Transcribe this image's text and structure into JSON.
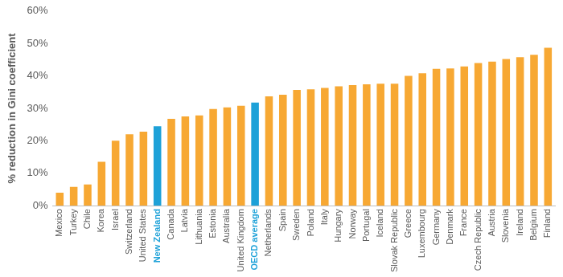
{
  "chart_data": {
    "type": "bar",
    "y_label": "% reduction in Gini coefficient",
    "categories": [
      "Mexico",
      "Turkey",
      "Chile",
      "Korea",
      "Israel",
      "Switzerland",
      "United States",
      "New Zealand",
      "Canada",
      "Latvia",
      "Lithuania",
      "Estonia",
      "Australia",
      "United Kingdom",
      "OECD average",
      "Netherlands",
      "Spain",
      "Sweden",
      "Poland",
      "Italy",
      "Hungary",
      "Norway",
      "Portugal",
      "Iceland",
      "Slovak Republic",
      "Greece",
      "Luxembourg",
      "Germany",
      "Denmark",
      "France",
      "Czech Republic",
      "Austria",
      "Slovenia",
      "Ireland",
      "Belgium",
      "Finland"
    ],
    "values": [
      4,
      5.8,
      6.5,
      13.5,
      20,
      22,
      22.8,
      24.5,
      26.8,
      27.5,
      27.8,
      29.8,
      30.3,
      30.8,
      31.8,
      33.7,
      34.2,
      35.7,
      35.9,
      36.3,
      36.8,
      37.2,
      37.4,
      37.6,
      37.6,
      40,
      40.8,
      42.2,
      42.3,
      42.9,
      44,
      44.4,
      45.2,
      45.8,
      46.5,
      48.7
    ],
    "colors": [
      "#F7A833",
      "#F7A833",
      "#F7A833",
      "#F7A833",
      "#F7A833",
      "#F7A833",
      "#F7A833",
      "#1DA1D8",
      "#F7A833",
      "#F7A833",
      "#F7A833",
      "#F7A833",
      "#F7A833",
      "#F7A833",
      "#1DA1D8",
      "#F7A833",
      "#F7A833",
      "#F7A833",
      "#F7A833",
      "#F7A833",
      "#F7A833",
      "#F7A833",
      "#F7A833",
      "#F7A833",
      "#F7A833",
      "#F7A833",
      "#F7A833",
      "#F7A833",
      "#F7A833",
      "#F7A833",
      "#F7A833",
      "#F7A833",
      "#F7A833",
      "#F7A833",
      "#F7A833",
      "#F7A833"
    ],
    "ylim": [
      0,
      60
    ],
    "yticks": [
      {
        "value": 0,
        "label": "0%"
      },
      {
        "value": 10,
        "label": "10%"
      },
      {
        "value": 20,
        "label": "20%"
      },
      {
        "value": 30,
        "label": "30%"
      },
      {
        "value": 40,
        "label": "40%"
      },
      {
        "value": 50,
        "label": "50%"
      },
      {
        "value": 60,
        "label": "60%"
      }
    ],
    "grid": false
  }
}
